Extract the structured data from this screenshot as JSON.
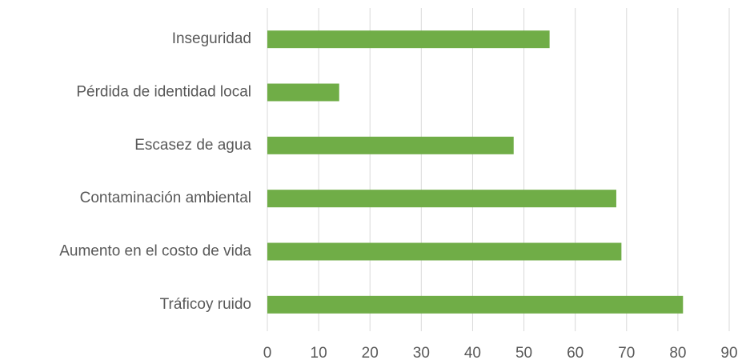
{
  "chart_data": {
    "type": "bar",
    "orientation": "horizontal",
    "categories": [
      "Inseguridad",
      "Pérdida de identidad local",
      "Escasez de agua",
      "Contaminación ambiental",
      "Aumento en el costo de vida",
      "Tráficoy ruido"
    ],
    "values": [
      55,
      14,
      48,
      68,
      69,
      81
    ],
    "color": "#70ad47",
    "xlim": [
      0,
      90
    ],
    "xticks": [
      0,
      10,
      20,
      30,
      40,
      50,
      60,
      70,
      80,
      90
    ],
    "grid": true
  }
}
